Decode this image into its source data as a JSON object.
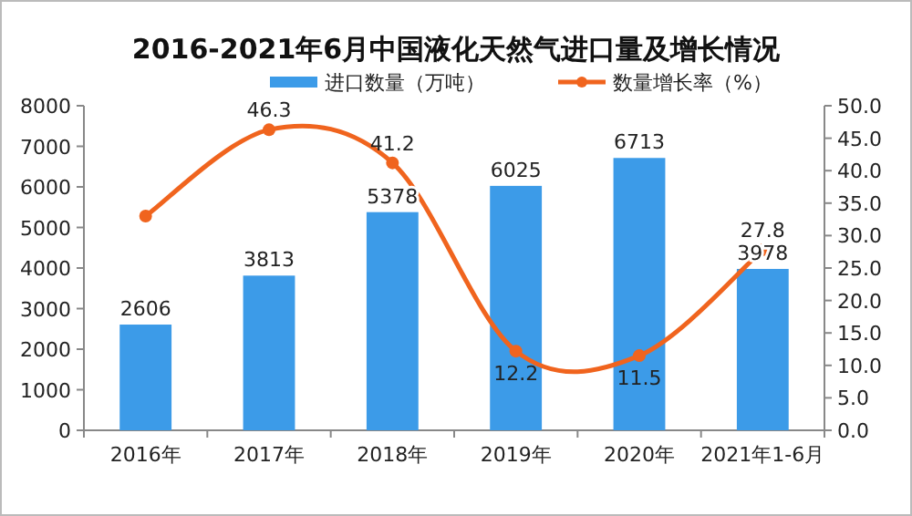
{
  "chart_data": {
    "type": "bar",
    "title": "2016-2021年6月中国液化天然气进口量及增长情况",
    "categories": [
      "2016年",
      "2017年",
      "2018年",
      "2019年",
      "2020年",
      "2021年1-6月"
    ],
    "series": [
      {
        "name": "进口数量（万吨）",
        "color": "#3c9be8",
        "values": [
          2606,
          3813,
          5378,
          6025,
          6713,
          3978
        ],
        "value_labels": [
          "2606",
          "3813",
          "5378",
          "6025",
          "6713",
          "3978"
        ]
      },
      {
        "name": "数量增长率（%）",
        "type": "line",
        "axis": "y2",
        "color": "#f0641e",
        "marker": "circle",
        "values": [
          33,
          46.3,
          41.2,
          12.2,
          11.5,
          27.8
        ],
        "value_labels": [
          null,
          "46.3",
          "41.2",
          "12.2",
          "11.5",
          "27.8"
        ]
      }
    ],
    "ylim": [
      0,
      8000
    ],
    "yticks": [
      0,
      1000,
      2000,
      3000,
      4000,
      5000,
      6000,
      7000,
      8000
    ],
    "y2lim": [
      0,
      50
    ],
    "y2ticks": [
      {
        "value": 0,
        "label": "0.0"
      },
      {
        "value": 5,
        "label": "5.0"
      },
      {
        "value": 10,
        "label": "10.0"
      },
      {
        "value": 15,
        "label": "15.0"
      },
      {
        "value": 20,
        "label": "20.0"
      },
      {
        "value": 25,
        "label": "25.0"
      },
      {
        "value": 30,
        "label": "30.0"
      },
      {
        "value": 35,
        "label": "35.0"
      },
      {
        "value": 40,
        "label": "40.0"
      },
      {
        "value": 45,
        "label": "45.0"
      },
      {
        "value": 50,
        "label": "50.0"
      }
    ],
    "legend": "top",
    "grid": false
  }
}
